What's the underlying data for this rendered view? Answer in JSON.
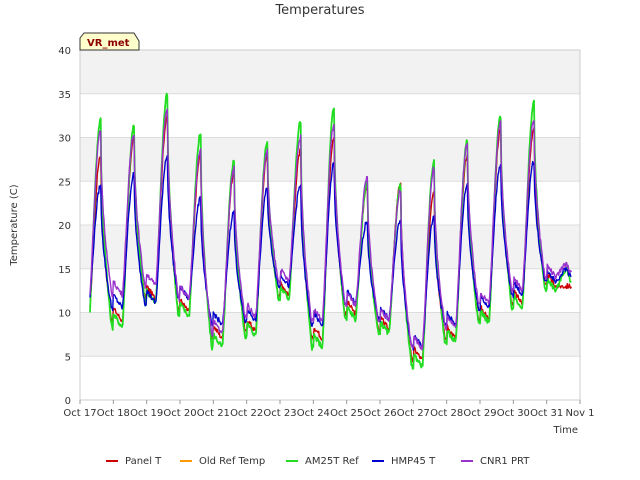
{
  "chart_data": {
    "type": "line",
    "title": "Temperatures",
    "xlabel": "Time",
    "ylabel": "Temperature (C)",
    "badge": "VR_met",
    "ylim": [
      0,
      40
    ],
    "y_ticks": [
      0,
      5,
      10,
      15,
      20,
      25,
      30,
      35,
      40
    ],
    "x_ticks": [
      "Oct 17",
      "Oct 18",
      "Oct 19",
      "Oct 20",
      "Oct 21",
      "Oct 22",
      "Oct 23",
      "Oct 24",
      "Oct 25",
      "Oct 26",
      "Oct 27",
      "Oct 28",
      "Oct 29",
      "Oct 30",
      "Oct 31",
      "Nov 1"
    ],
    "x_unit": "day offset from Oct 17",
    "xlim": [
      0,
      15
    ],
    "grid": true,
    "legend_position": "bottom",
    "daily_min_max_c": {
      "AM25T Ref": {
        "min": [
          8.5,
          8.3,
          11.0,
          9.5,
          6.0,
          7.3,
          11.5,
          6.0,
          9.2,
          7.5,
          3.8,
          6.5,
          8.8,
          10.5,
          12.5
        ],
        "max": [
          32.0,
          31.3,
          35.0,
          30.5,
          27.3,
          29.6,
          31.8,
          33.3,
          25.0,
          24.5,
          27.2,
          29.7,
          32.5,
          34.0,
          15.0
        ]
      },
      "HMP45 T": {
        "min": [
          10.8,
          10.5,
          11.0,
          11.5,
          8.5,
          9.0,
          13.0,
          8.5,
          11.0,
          9.2,
          6.0,
          8.5,
          10.5,
          12.0,
          13.5
        ],
        "max": [
          24.5,
          25.8,
          28.0,
          23.0,
          21.5,
          24.2,
          24.5,
          27.0,
          20.5,
          20.5,
          21.0,
          24.6,
          27.0,
          27.3,
          15.0
        ]
      },
      "CNR1 PRT": {
        "min": [
          10.5,
          12.0,
          13.0,
          11.5,
          7.5,
          9.5,
          13.5,
          9.0,
          10.8,
          9.0,
          5.8,
          8.3,
          11.0,
          12.5,
          14.0
        ],
        "max": [
          30.8,
          30.5,
          33.2,
          28.5,
          26.5,
          28.5,
          30.0,
          31.5,
          25.5,
          24.0,
          26.5,
          29.5,
          31.8,
          32.0,
          15.5
        ]
      },
      "Panel T": {
        "min": [
          9.0,
          9.0,
          11.5,
          10.0,
          7.0,
          7.8,
          12.0,
          7.0,
          9.8,
          8.0,
          4.5,
          7.0,
          9.2,
          11.0,
          13.0
        ],
        "max": [
          28.0,
          30.0,
          32.5,
          28.0,
          26.0,
          28.0,
          28.5,
          30.0,
          24.5,
          24.8,
          24.0,
          28.0,
          31.0,
          31.0,
          13.0
        ]
      }
    },
    "series": [
      {
        "name": "Panel T",
        "color": "#cc0000"
      },
      {
        "name": "Old Ref Temp",
        "color": "#ff9900"
      },
      {
        "name": "AM25T Ref",
        "color": "#22dd22"
      },
      {
        "name": "HMP45 T",
        "color": "#0000cc"
      },
      {
        "name": "CNR1 PRT",
        "color": "#9933cc"
      }
    ]
  }
}
